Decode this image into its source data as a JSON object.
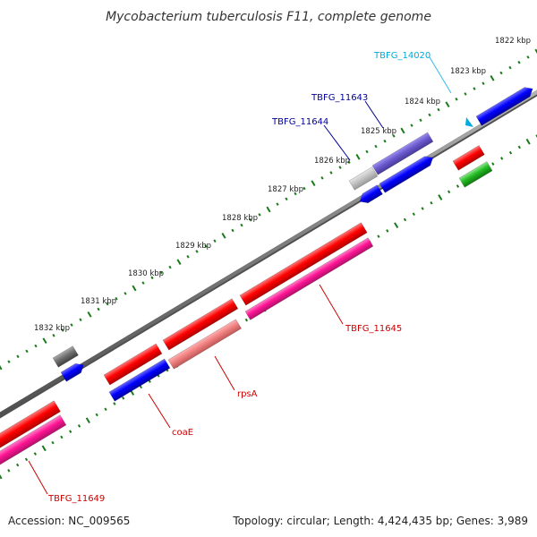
{
  "title": "Mycobacterium tuberculosis F11, complete genome",
  "footer": {
    "accession": "Accession: NC_009565",
    "summary": "Topology: circular; Length: 4,424,435 bp; Genes: 3,989"
  },
  "ticks": [
    "1822 kbp",
    "1823 kbp",
    "1824 kbp",
    "1825 kbp",
    "1826 kbp",
    "1827 kbp",
    "1828 kbp",
    "1829 kbp",
    "1830 kbp",
    "1831 kbp",
    "1832 kbp"
  ],
  "gene_labels": {
    "tbfg_14020": "TBFG_14020",
    "tbfg_11643": "TBFG_11643",
    "tbfg_11644": "TBFG_11644",
    "tbfg_11645": "TBFG_11645",
    "rpsa": "rpsA",
    "coae": "coaE",
    "tbfg_11649": "TBFG_11649"
  },
  "colors": {
    "red": "#ff0000",
    "pink": "#ff1493",
    "salmon": "#f08080",
    "blue": "#0000ff",
    "purple": "#6a5acd",
    "gray": "#777777",
    "green": "#22bb22",
    "cyan_label": "#00aadd",
    "navy_label": "#000099",
    "red_label": "#cc0000",
    "backbone": "#888888",
    "tick_green": "#1a7a1a"
  }
}
